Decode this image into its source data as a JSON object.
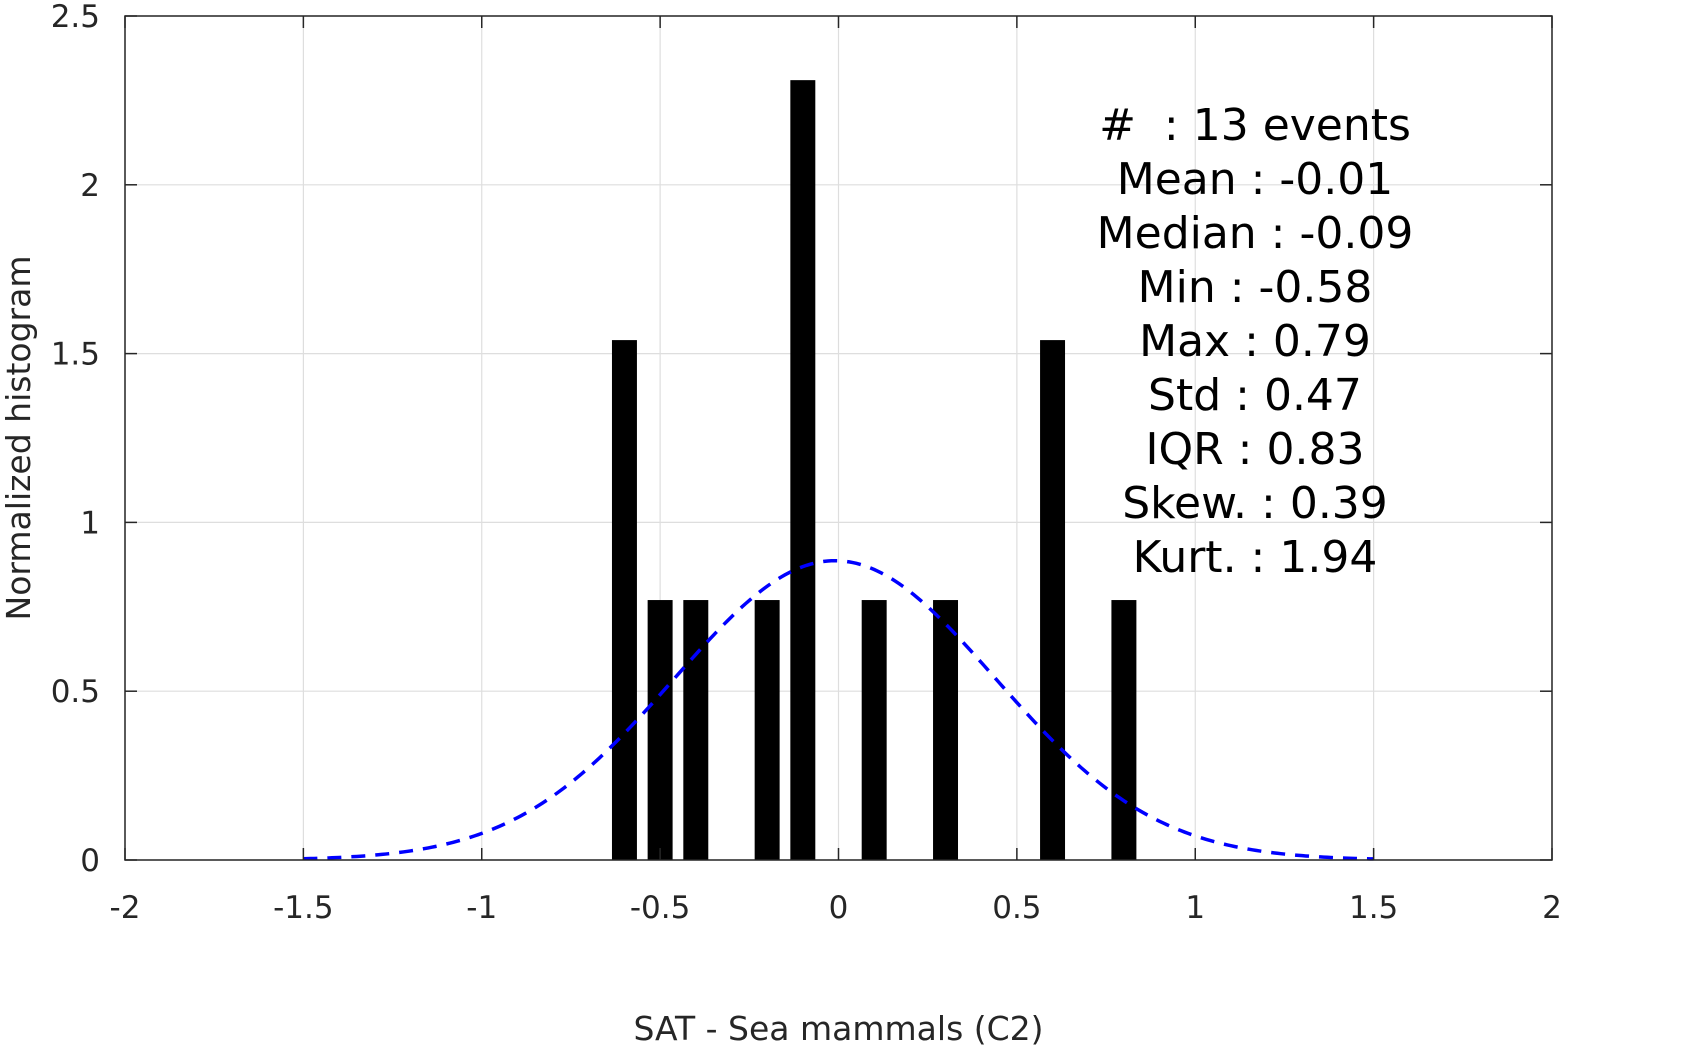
{
  "chart_data": {
    "type": "bar",
    "xlabel": "SAT - Sea mammals (C2)",
    "ylabel": "Normalized histogram",
    "xlim": [
      -2,
      2
    ],
    "ylim": [
      0,
      2.5
    ],
    "x_ticks": [
      "-2",
      "-1.5",
      "-1",
      "-0.5",
      "0",
      "0.5",
      "1",
      "1.5",
      "2"
    ],
    "y_ticks": [
      "0",
      "0.5",
      "1",
      "1.5",
      "2",
      "2.5"
    ],
    "grid": true,
    "bar_color": "#000000",
    "bar_width": 0.07,
    "bars": [
      {
        "x": -0.6,
        "y": 1.54
      },
      {
        "x": -0.5,
        "y": 0.77
      },
      {
        "x": -0.4,
        "y": 0.77
      },
      {
        "x": -0.2,
        "y": 0.77
      },
      {
        "x": -0.1,
        "y": 2.31
      },
      {
        "x": 0.1,
        "y": 0.77
      },
      {
        "x": 0.3,
        "y": 0.77
      },
      {
        "x": 0.6,
        "y": 1.54
      },
      {
        "x": 0.8,
        "y": 0.77
      }
    ],
    "fit_curve": {
      "style": "dashed",
      "color": "#0000ff",
      "mean": -0.01,
      "std": 0.45,
      "x_range": [
        -1.5,
        1.5
      ]
    },
    "stats": [
      "#  : 13 events",
      "Mean : -0.01",
      "Median : -0.09",
      "Min : -0.58",
      "Max : 0.79",
      "Std : 0.47",
      "IQR : 0.83",
      "Skew. : 0.39",
      "Kurt. : 1.94"
    ]
  }
}
